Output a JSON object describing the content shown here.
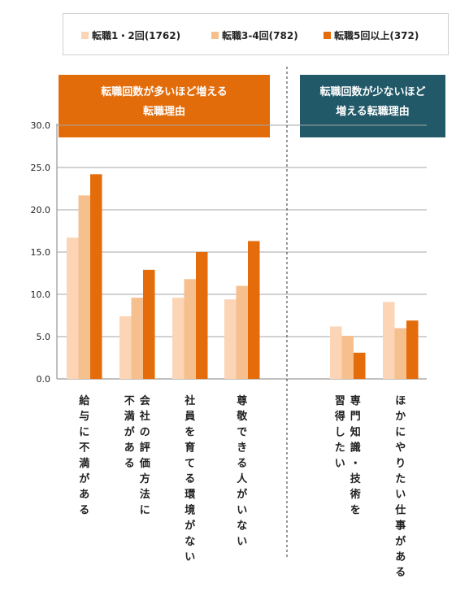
{
  "legend": {
    "items": [
      {
        "label": "転職1・2回(1762)",
        "color": "#fbd5b5"
      },
      {
        "label": "転職3-4回(782)",
        "color": "#f6bf8e"
      },
      {
        "label": "転職5回以上(372)",
        "color": "#e46c0a"
      }
    ]
  },
  "banners": {
    "left": {
      "line1": "転職回数が多いほど増える",
      "line2": "転職理由",
      "color": "#e36c0a"
    },
    "right": {
      "line1": "転職回数が少ないほど",
      "line2": "増える転職理由",
      "color": "#215968"
    }
  },
  "chart_data": {
    "type": "bar",
    "categories": [
      "給与に不満がある",
      "会社の評価方法に不満がある",
      "社員を育てる環境がない",
      "尊敬できる人がいない",
      "専門知識・技術を習得したい",
      "ほかにやりたい仕事がある"
    ],
    "series": [
      {
        "name": "転職1・2回(1762)",
        "color": "#fbd5b5",
        "values": [
          16.7,
          7.4,
          9.6,
          9.4,
          6.2,
          9.1
        ]
      },
      {
        "name": "転職3-4回(782)",
        "color": "#f6bf8e",
        "values": [
          21.7,
          9.6,
          11.8,
          11.0,
          5.1,
          6.0
        ]
      },
      {
        "name": "転職5回以上(372)",
        "color": "#e46c0a",
        "values": [
          24.2,
          12.9,
          15.0,
          16.3,
          3.1,
          6.9
        ]
      }
    ],
    "y_ticks": [
      "0.0",
      "5.0",
      "10.0",
      "15.0",
      "20.0",
      "25.0",
      "30.0"
    ],
    "ylim": [
      0,
      30
    ],
    "grid": true,
    "legend_position": "top",
    "category_labels": [
      {
        "col1": "給与に不満がある",
        "col2": ""
      },
      {
        "col1": "会社の評価方法に",
        "col2": "不満がある"
      },
      {
        "col1": "社員を育てる環境がない",
        "col2": ""
      },
      {
        "col1": "尊敬できる人がいない",
        "col2": ""
      },
      {
        "col1": "専門知識・技術を",
        "col2": "習得したい"
      },
      {
        "col1": "ほかにやりたい仕事がある",
        "col2": ""
      }
    ]
  }
}
